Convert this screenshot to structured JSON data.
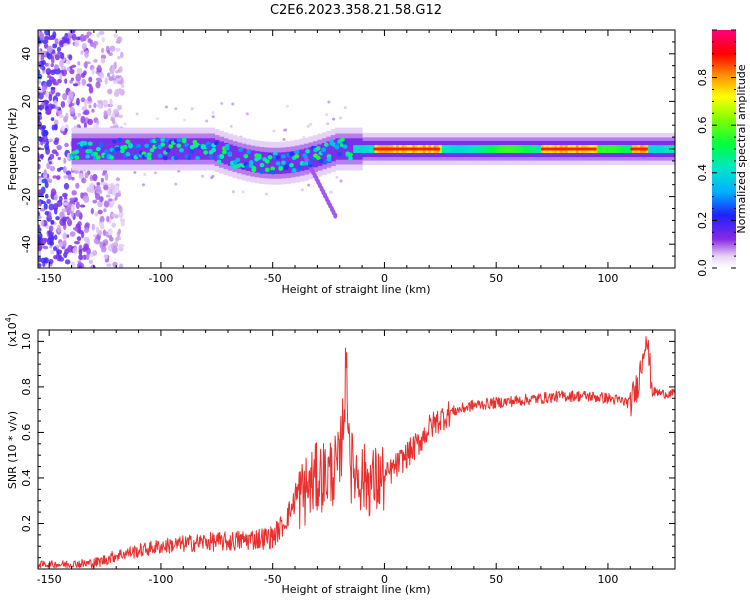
{
  "title": "C2E6.2023.358.21.58.G12",
  "colors": {
    "snr_line": "#e8302f",
    "axis": "#000000",
    "background": "#ffffff"
  },
  "chart_data": [
    {
      "type": "heatmap",
      "title": "",
      "xlabel": "Height of straight line (km)",
      "ylabel": "Frequency (Hz)",
      "xlim": [
        -155,
        130
      ],
      "ylim": [
        -50,
        50
      ],
      "xticks": [
        -150,
        -100,
        -50,
        0,
        50,
        100
      ],
      "yticks": [
        -40,
        -20,
        0,
        20,
        40
      ],
      "colorbar": {
        "label": "Normalized spectral amplitude",
        "range": [
          0,
          1
        ],
        "ticks": [
          "0.0",
          "0.2",
          "0.4",
          "0.6",
          "0.8"
        ],
        "colormap": "rainbow (white-purple-blue-cyan-green-yellow-red-magenta)"
      },
      "features": {
        "central_band_freq_hz": 0,
        "band_halfwidth_hz": [
          5,
          3
        ],
        "broadband_noise_region_km": [
          -155,
          -125
        ],
        "band_dip_km": [
          -60,
          -40
        ],
        "band_dip_freq_hz": -6,
        "tail_to": {
          "km": -22,
          "hz": -28
        },
        "strong_segments_km": [
          [
            -5,
            25
          ],
          [
            70,
            95
          ],
          [
            110,
            118
          ]
        ]
      }
    },
    {
      "type": "line",
      "title": "",
      "xlabel": "Height of straight line (km)",
      "ylabel": "SNR (10 * v/v)",
      "ylabel_scale": "(x10",
      "ylabel_scale_exp": "4",
      "xlim": [
        -155,
        130
      ],
      "ylim": [
        0,
        1.05
      ],
      "xticks": [
        -150,
        -100,
        -50,
        0,
        50,
        100
      ],
      "yticks": [
        0.2,
        0.4,
        0.6,
        0.8,
        1.0
      ],
      "ytick_labels": [
        "0.2",
        "0.4",
        "0.6",
        "0.8",
        "1.0"
      ],
      "series": [
        {
          "x": [
            -155,
            -140,
            -130,
            -125,
            -120,
            -110,
            -100,
            -90,
            -80,
            -70,
            -60,
            -50,
            -45,
            -40,
            -35,
            -30,
            -25,
            -20,
            -17,
            -15,
            -10,
            -5,
            0,
            5,
            10,
            15,
            20,
            25,
            30,
            40,
            50,
            60,
            70,
            80,
            90,
            100,
            105,
            110,
            113,
            115,
            117,
            120,
            125,
            130
          ],
          "y": [
            0.02,
            0.02,
            0.025,
            0.04,
            0.06,
            0.08,
            0.1,
            0.11,
            0.12,
            0.12,
            0.13,
            0.14,
            0.2,
            0.3,
            0.35,
            0.4,
            0.42,
            0.45,
            0.88,
            0.45,
            0.4,
            0.38,
            0.4,
            0.45,
            0.5,
            0.55,
            0.62,
            0.66,
            0.69,
            0.72,
            0.73,
            0.74,
            0.75,
            0.76,
            0.76,
            0.75,
            0.74,
            0.73,
            0.8,
            0.9,
            1.04,
            0.78,
            0.77,
            0.77
          ]
        }
      ]
    }
  ]
}
